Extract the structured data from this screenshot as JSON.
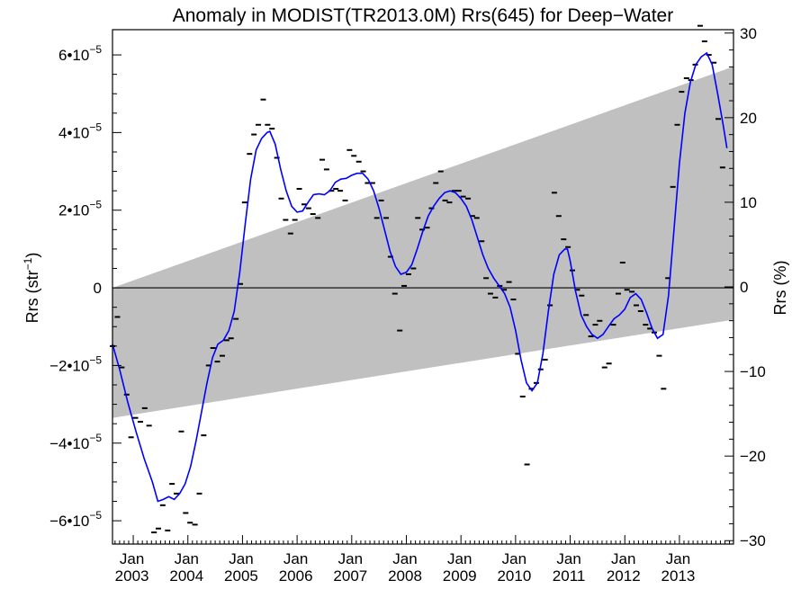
{
  "chart_data": {
    "type": "scatter",
    "title": "Anomaly in MODIST(TR2013.0M) Rrs(645) for Deep−Water",
    "ylabel_main": "Rrs (str",
    "ylabel_sup": "−1",
    "ylabel_close": ")",
    "y2label": "Rrs (%)",
    "xlim": [
      2002.62,
      2013.99
    ],
    "ylim": [
      -6.6e-05,
      6.65e-05
    ],
    "y2lim": [
      -30.4,
      30.4
    ],
    "x_ticks": [
      {
        "value": 2003.0,
        "month": "Jan",
        "year": "2003"
      },
      {
        "value": 2004.0,
        "month": "Jan",
        "year": "2004"
      },
      {
        "value": 2005.0,
        "month": "Jan",
        "year": "2005"
      },
      {
        "value": 2006.0,
        "month": "Jan",
        "year": "2006"
      },
      {
        "value": 2007.0,
        "month": "Jan",
        "year": "2007"
      },
      {
        "value": 2008.0,
        "month": "Jan",
        "year": "2008"
      },
      {
        "value": 2009.0,
        "month": "Jan",
        "year": "2009"
      },
      {
        "value": 2010.0,
        "month": "Jan",
        "year": "2010"
      },
      {
        "value": 2011.0,
        "month": "Jan",
        "year": "2011"
      },
      {
        "value": 2012.0,
        "month": "Jan",
        "year": "2012"
      },
      {
        "value": 2013.0,
        "month": "Jan",
        "year": "2013"
      }
    ],
    "y_ticks_left": [
      {
        "value": 6e-05,
        "mant": "6•10",
        "exp": "−5"
      },
      {
        "value": 4e-05,
        "mant": "4•10",
        "exp": "−5"
      },
      {
        "value": 2e-05,
        "mant": "2•10",
        "exp": "−5"
      },
      {
        "value": 0,
        "mant": "0",
        "exp": ""
      },
      {
        "value": -2e-05,
        "mant": "−2•10",
        "exp": "−5"
      },
      {
        "value": -4e-05,
        "mant": "−4•10",
        "exp": "−5"
      },
      {
        "value": -6e-05,
        "mant": "−6•10",
        "exp": "−5"
      }
    ],
    "y_ticks_right": [
      {
        "value": 30,
        "label": "30"
      },
      {
        "value": 20,
        "label": "20"
      },
      {
        "value": 10,
        "label": "10"
      },
      {
        "value": 0,
        "label": "0"
      },
      {
        "value": -10,
        "label": "−10"
      },
      {
        "value": -20,
        "label": "−20"
      },
      {
        "value": -30,
        "label": "−30"
      }
    ],
    "zero_line": 0,
    "uncertainty_band": {
      "color": "#c0c0c0",
      "upper": [
        [
          2002.62,
          0.0
        ],
        [
          2013.99,
          5.7e-05
        ]
      ],
      "lower": [
        [
          2002.62,
          -3.35e-05
        ],
        [
          2013.99,
          -8.2e-06
        ]
      ]
    },
    "series": [
      {
        "kind": "points",
        "color": "#000000",
        "points": [
          [
            2002.62,
            -1.5e-05
          ],
          [
            2002.71,
            -7.5e-06
          ],
          [
            2002.79,
            -2.05e-05
          ],
          [
            2002.88,
            -2.75e-05
          ],
          [
            2002.96,
            -3.85e-05
          ],
          [
            2003.04,
            -3.35e-05
          ],
          [
            2003.13,
            -3.45e-05
          ],
          [
            2003.21,
            -3.1e-05
          ],
          [
            2003.29,
            -3.55e-05
          ],
          [
            2003.38,
            -6.3e-05
          ],
          [
            2003.46,
            -6.2e-05
          ],
          [
            2003.54,
            -5.6e-05
          ],
          [
            2003.63,
            -6.25e-05
          ],
          [
            2003.71,
            -5.05e-05
          ],
          [
            2003.79,
            -5.3e-05
          ],
          [
            2003.88,
            -3.7e-05
          ],
          [
            2003.96,
            -5.8e-05
          ],
          [
            2004.04,
            -6.05e-05
          ],
          [
            2004.13,
            -6.1e-05
          ],
          [
            2004.21,
            -5.3e-05
          ],
          [
            2004.29,
            -3.8e-05
          ],
          [
            2004.38,
            -2e-05
          ],
          [
            2004.46,
            -1.55e-05
          ],
          [
            2004.54,
            -1.9e-05
          ],
          [
            2004.63,
            -1.75e-05
          ],
          [
            2004.71,
            -1.35e-05
          ],
          [
            2004.79,
            -1.3e-05
          ],
          [
            2004.88,
            -8e-06
          ],
          [
            2004.96,
            1e-06
          ],
          [
            2005.04,
            2.2e-05
          ],
          [
            2005.13,
            3.45e-05
          ],
          [
            2005.21,
            3.95e-05
          ],
          [
            2005.29,
            4.2e-05
          ],
          [
            2005.38,
            4.85e-05
          ],
          [
            2005.46,
            4.2e-05
          ],
          [
            2005.54,
            4.1e-05
          ],
          [
            2005.63,
            3.35e-05
          ],
          [
            2005.71,
            2.3e-05
          ],
          [
            2005.79,
            1.75e-05
          ],
          [
            2005.88,
            1.4e-05
          ],
          [
            2005.96,
            1.75e-05
          ],
          [
            2006.04,
            2.55e-05
          ],
          [
            2006.13,
            2.15e-05
          ],
          [
            2006.21,
            2.05e-05
          ],
          [
            2006.29,
            1.9e-05
          ],
          [
            2006.38,
            1.8e-05
          ],
          [
            2006.46,
            3.3e-05
          ],
          [
            2006.54,
            3.05e-05
          ],
          [
            2006.63,
            2.5e-05
          ],
          [
            2006.71,
            2.55e-05
          ],
          [
            2006.79,
            2.5e-05
          ],
          [
            2006.88,
            2.25e-05
          ],
          [
            2006.96,
            3.55e-05
          ],
          [
            2007.04,
            3.4e-05
          ],
          [
            2007.13,
            3.25e-05
          ],
          [
            2007.21,
            3e-05
          ],
          [
            2007.29,
            2.7e-05
          ],
          [
            2007.38,
            2.7e-05
          ],
          [
            2007.46,
            1.8e-05
          ],
          [
            2007.54,
            2.25e-05
          ],
          [
            2007.63,
            1.8e-05
          ],
          [
            2007.71,
            8e-06
          ],
          [
            2007.79,
            -1.5e-06
          ],
          [
            2007.88,
            -1.1e-05
          ],
          [
            2007.96,
            5e-07
          ],
          [
            2008.04,
            3.5e-06
          ],
          [
            2008.13,
            5e-06
          ],
          [
            2008.21,
            1.8e-05
          ],
          [
            2008.29,
            1.5e-05
          ],
          [
            2008.38,
            1.55e-05
          ],
          [
            2008.46,
            2.05e-05
          ],
          [
            2008.54,
            2.7e-05
          ],
          [
            2008.63,
            3e-05
          ],
          [
            2008.71,
            2.25e-05
          ],
          [
            2008.79,
            2.2e-05
          ],
          [
            2008.88,
            2.5e-05
          ],
          [
            2008.96,
            2.5e-05
          ],
          [
            2009.04,
            2.35e-05
          ],
          [
            2009.13,
            2.3e-05
          ],
          [
            2009.21,
            1.85e-05
          ],
          [
            2009.29,
            1.8e-05
          ],
          [
            2009.38,
            1.2e-05
          ],
          [
            2009.46,
            2.5e-06
          ],
          [
            2009.54,
            -1.5e-06
          ],
          [
            2009.63,
            -2.5e-06
          ],
          [
            2009.71,
            5e-07
          ],
          [
            2009.79,
            -5e-07
          ],
          [
            2009.88,
            1.5e-06
          ],
          [
            2009.96,
            -3e-06
          ],
          [
            2010.04,
            -1.7e-05
          ],
          [
            2010.13,
            -2.8e-05
          ],
          [
            2010.21,
            -4.55e-05
          ],
          [
            2010.29,
            -2.6e-05
          ],
          [
            2010.38,
            -2.45e-05
          ],
          [
            2010.46,
            -2.1e-05
          ],
          [
            2010.54,
            -1.85e-05
          ],
          [
            2010.63,
            -4.5e-06
          ],
          [
            2010.71,
            2.45e-05
          ],
          [
            2010.79,
            1.85e-05
          ],
          [
            2010.88,
            1.25e-05
          ],
          [
            2010.96,
            1.05e-05
          ],
          [
            2011.04,
            4.5e-06
          ],
          [
            2011.13,
            -5e-07
          ],
          [
            2011.21,
            -2e-06
          ],
          [
            2011.29,
            -7e-06
          ],
          [
            2011.38,
            -1.25e-05
          ],
          [
            2011.46,
            -9.5e-06
          ],
          [
            2011.54,
            -8.5e-06
          ],
          [
            2011.63,
            -2.05e-05
          ],
          [
            2011.71,
            -1.95e-05
          ],
          [
            2011.79,
            -9.5e-06
          ],
          [
            2011.88,
            -1.5e-06
          ],
          [
            2011.96,
            6.5e-06
          ],
          [
            2012.04,
            -5e-07
          ],
          [
            2012.13,
            -1e-06
          ],
          [
            2012.21,
            -4.5e-06
          ],
          [
            2012.29,
            -6e-06
          ],
          [
            2012.38,
            -9.5e-06
          ],
          [
            2012.46,
            -1.05e-05
          ],
          [
            2012.54,
            -1.15e-05
          ],
          [
            2012.63,
            -1.75e-05
          ],
          [
            2012.71,
            -2.6e-05
          ],
          [
            2012.79,
            2.5e-06
          ],
          [
            2012.88,
            2.6e-05
          ],
          [
            2012.96,
            4.2e-05
          ],
          [
            2013.04,
            5.05e-05
          ],
          [
            2013.13,
            5.4e-05
          ],
          [
            2013.21,
            5.35e-05
          ],
          [
            2013.29,
            5.75e-05
          ],
          [
            2013.38,
            6.75e-05
          ],
          [
            2013.46,
            6.35e-05
          ],
          [
            2013.54,
            6e-05
          ],
          [
            2013.63,
            5.8e-05
          ],
          [
            2013.71,
            4.35e-05
          ],
          [
            2013.79,
            3.1e-05
          ]
        ]
      },
      {
        "kind": "smoothed-line",
        "color": "#0000ff",
        "points": [
          [
            2002.62,
            -1.45e-05
          ],
          [
            2002.75,
            -2.1e-05
          ],
          [
            2002.9,
            -2.95e-05
          ],
          [
            2003.05,
            -3.7e-05
          ],
          [
            2003.2,
            -4.4e-05
          ],
          [
            2003.35,
            -5e-05
          ],
          [
            2003.45,
            -5.5e-05
          ],
          [
            2003.55,
            -5.45e-05
          ],
          [
            2003.65,
            -5.38e-05
          ],
          [
            2003.75,
            -5.45e-05
          ],
          [
            2003.85,
            -5.3e-05
          ],
          [
            2003.95,
            -5.05e-05
          ],
          [
            2004.05,
            -4.6e-05
          ],
          [
            2004.15,
            -3.95e-05
          ],
          [
            2004.25,
            -3.2e-05
          ],
          [
            2004.35,
            -2.45e-05
          ],
          [
            2004.45,
            -1.8e-05
          ],
          [
            2004.55,
            -1.45e-05
          ],
          [
            2004.65,
            -1.35e-05
          ],
          [
            2004.75,
            -1.1e-05
          ],
          [
            2004.85,
            -6e-06
          ],
          [
            2004.95,
            4e-06
          ],
          [
            2005.05,
            1.65e-05
          ],
          [
            2005.15,
            2.8e-05
          ],
          [
            2005.25,
            3.55e-05
          ],
          [
            2005.35,
            3.85e-05
          ],
          [
            2005.45,
            4e-05
          ],
          [
            2005.5,
            4.03e-05
          ],
          [
            2005.6,
            3.7e-05
          ],
          [
            2005.7,
            3.05e-05
          ],
          [
            2005.8,
            2.5e-05
          ],
          [
            2005.9,
            2.1e-05
          ],
          [
            2006.0,
            1.95e-05
          ],
          [
            2006.1,
            1.98e-05
          ],
          [
            2006.2,
            2.2e-05
          ],
          [
            2006.3,
            2.4e-05
          ],
          [
            2006.4,
            2.42e-05
          ],
          [
            2006.5,
            2.4e-05
          ],
          [
            2006.6,
            2.5e-05
          ],
          [
            2006.7,
            2.72e-05
          ],
          [
            2006.8,
            2.8e-05
          ],
          [
            2006.9,
            2.82e-05
          ],
          [
            2007.0,
            2.9e-05
          ],
          [
            2007.1,
            2.95e-05
          ],
          [
            2007.2,
            2.95e-05
          ],
          [
            2007.3,
            2.8e-05
          ],
          [
            2007.4,
            2.5e-05
          ],
          [
            2007.5,
            2.05e-05
          ],
          [
            2007.6,
            1.5e-05
          ],
          [
            2007.7,
            9.5e-06
          ],
          [
            2007.8,
            5.5e-06
          ],
          [
            2007.9,
            3.5e-06
          ],
          [
            2008.0,
            4e-06
          ],
          [
            2008.1,
            6e-06
          ],
          [
            2008.2,
            1e-05
          ],
          [
            2008.3,
            1.45e-05
          ],
          [
            2008.4,
            1.85e-05
          ],
          [
            2008.5,
            2.1e-05
          ],
          [
            2008.6,
            2.3e-05
          ],
          [
            2008.7,
            2.45e-05
          ],
          [
            2008.8,
            2.5e-05
          ],
          [
            2008.9,
            2.45e-05
          ],
          [
            2009.0,
            2.3e-05
          ],
          [
            2009.1,
            2.1e-05
          ],
          [
            2009.2,
            1.75e-05
          ],
          [
            2009.3,
            1.3e-05
          ],
          [
            2009.4,
            8.5e-06
          ],
          [
            2009.5,
            5e-06
          ],
          [
            2009.6,
            2.5e-06
          ],
          [
            2009.7,
            5e-07
          ],
          [
            2009.8,
            -1.5e-06
          ],
          [
            2009.9,
            -5e-06
          ],
          [
            2010.0,
            -1.1e-05
          ],
          [
            2010.1,
            -1.85e-05
          ],
          [
            2010.2,
            -2.45e-05
          ],
          [
            2010.3,
            -2.65e-05
          ],
          [
            2010.4,
            -2.45e-05
          ],
          [
            2010.5,
            -1.7e-05
          ],
          [
            2010.6,
            -6e-06
          ],
          [
            2010.7,
            3.5e-06
          ],
          [
            2010.8,
            8.5e-06
          ],
          [
            2010.9,
            1e-05
          ],
          [
            2010.95,
            1e-05
          ],
          [
            2011.0,
            7e-06
          ],
          [
            2011.1,
            -1e-06
          ],
          [
            2011.2,
            -7e-06
          ],
          [
            2011.3,
            -1e-05
          ],
          [
            2011.4,
            -1.2e-05
          ],
          [
            2011.5,
            -1.3e-05
          ],
          [
            2011.6,
            -1.2e-05
          ],
          [
            2011.7,
            -1e-05
          ],
          [
            2011.8,
            -8e-06
          ],
          [
            2011.9,
            -7e-06
          ],
          [
            2012.0,
            -5.5e-06
          ],
          [
            2012.1,
            -2.5e-06
          ],
          [
            2012.2,
            -1.5e-06
          ],
          [
            2012.3,
            -3e-06
          ],
          [
            2012.4,
            -6.5e-06
          ],
          [
            2012.5,
            -1.05e-05
          ],
          [
            2012.6,
            -1.3e-05
          ],
          [
            2012.7,
            -1.2e-05
          ],
          [
            2012.8,
            -2e-06
          ],
          [
            2012.9,
            1.5e-05
          ],
          [
            2013.0,
            3.2e-05
          ],
          [
            2013.1,
            4.5e-05
          ],
          [
            2013.2,
            5.3e-05
          ],
          [
            2013.3,
            5.75e-05
          ],
          [
            2013.4,
            5.95e-05
          ],
          [
            2013.5,
            6.05e-05
          ],
          [
            2013.6,
            5.75e-05
          ],
          [
            2013.7,
            5e-05
          ],
          [
            2013.8,
            4.2e-05
          ],
          [
            2013.87,
            3.6e-05
          ]
        ]
      }
    ]
  }
}
